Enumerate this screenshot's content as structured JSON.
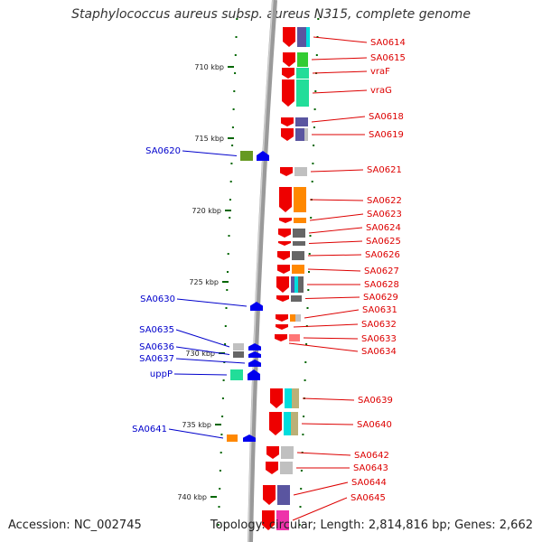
{
  "header": {
    "title": "Staphylococcus aureus subsp. aureus N315, complete genome"
  },
  "footer": {
    "accession": "Accession: NC_002745",
    "summary": "Topology: circular; Length: 2,814,816 bp; Genes: 2,662"
  },
  "colors": {
    "forward_label": "#dd0000",
    "reverse_label": "#0000cc",
    "forward_gene": "#ee0000",
    "reverse_gene": "#0000ee",
    "backbone": "#888888",
    "tick": "#006600"
  },
  "scale": {
    "ticks": [
      {
        "kbp": 710,
        "label": "710 kbp"
      },
      {
        "kbp": 715,
        "label": "715 kbp"
      },
      {
        "kbp": 720,
        "label": "720 kbp"
      },
      {
        "kbp": 725,
        "label": "725 kbp"
      },
      {
        "kbp": 730,
        "label": "730 kbp"
      },
      {
        "kbp": 735,
        "label": "735 kbp"
      },
      {
        "kbp": 740,
        "label": "740 kbp"
      }
    ]
  },
  "forward_genes": [
    "SA0614",
    "SA0615",
    "vraF",
    "vraG",
    "SA0618",
    "SA0619",
    "SA0621",
    "SA0622",
    "SA0623",
    "SA0624",
    "SA0625",
    "SA0626",
    "SA0627",
    "SA0628",
    "SA0629",
    "SA0631",
    "SA0632",
    "SA0633",
    "SA0634",
    "SA0639",
    "SA0640",
    "SA0642",
    "SA0643",
    "SA0644",
    "SA0645"
  ],
  "reverse_genes": [
    "SA0620",
    "SA0630",
    "SA0635",
    "SA0636",
    "SA0637",
    "uppP",
    "SA0641"
  ]
}
